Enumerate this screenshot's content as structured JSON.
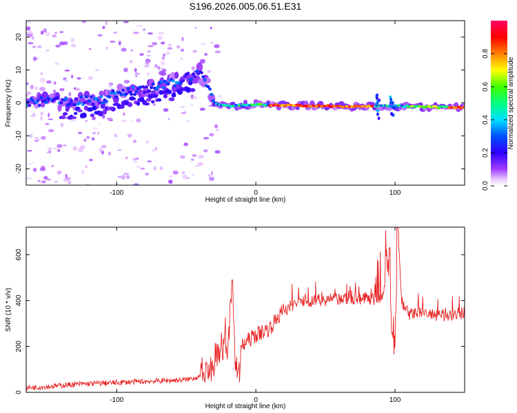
{
  "title": "S196.2026.005.06.51.E31",
  "colors": {
    "snr_line": "#e82020",
    "frame": "#000000",
    "background": "#ffffff"
  },
  "chart_data": [
    {
      "type": "heatmap",
      "name": "spectrogram",
      "xlabel": "Height of straight line (km)",
      "ylabel": "Frequency (Hz)",
      "xlim": [
        -165,
        150
      ],
      "ylim": [
        -25,
        25
      ],
      "xticks": [
        -100,
        0,
        100
      ],
      "yticks": [
        -20,
        -10,
        0,
        10,
        20
      ],
      "signal_track": {
        "description": "chirping arc rising from ~0 Hz at -160 km to ~9 Hz at -40 km, then flat line near -1 Hz from -25 km to 150 km",
        "points": [
          [
            -165,
            0
          ],
          [
            -150,
            0.5
          ],
          [
            -130,
            0.5
          ],
          [
            -110,
            1
          ],
          [
            -100,
            3
          ],
          [
            -80,
            4
          ],
          [
            -60,
            6
          ],
          [
            -45,
            8.5
          ],
          [
            -40,
            9
          ],
          [
            -35,
            6
          ],
          [
            -30,
            0
          ],
          [
            -20,
            -1
          ],
          [
            0,
            -0.5
          ],
          [
            50,
            -1
          ],
          [
            100,
            -1
          ],
          [
            150,
            -1.5
          ]
        ]
      }
    },
    {
      "type": "colorbar",
      "name": "colorbar",
      "label": "Normalized spectral amplitude",
      "range": [
        0,
        1
      ],
      "ticks": [
        "0.0",
        "0.2",
        "0.4",
        "0.6",
        "0.8"
      ]
    },
    {
      "type": "line",
      "name": "snr",
      "xlabel": "Height of straight line (km)",
      "ylabel": "SNR (10 * v/v)",
      "xlim": [
        -165,
        150
      ],
      "ylim": [
        0,
        720
      ],
      "xticks": [
        -100,
        0,
        100
      ],
      "yticks": [
        0,
        200,
        400,
        600
      ],
      "series": [
        {
          "name": "SNR",
          "x": [
            -165,
            -150,
            -130,
            -110,
            -90,
            -70,
            -50,
            -40,
            -30,
            -25,
            -20,
            -17,
            -15,
            -12,
            -10,
            -5,
            0,
            10,
            20,
            30,
            40,
            60,
            80,
            90,
            95,
            98,
            100,
            102,
            105,
            110,
            120,
            130,
            140,
            150
          ],
          "y": [
            20,
            25,
            35,
            40,
            45,
            50,
            55,
            70,
            110,
            200,
            180,
            480,
            150,
            60,
            200,
            230,
            250,
            280,
            360,
            390,
            400,
            405,
            410,
            400,
            560,
            250,
            150,
            700,
            380,
            340,
            350,
            330,
            340,
            345
          ]
        }
      ]
    }
  ]
}
